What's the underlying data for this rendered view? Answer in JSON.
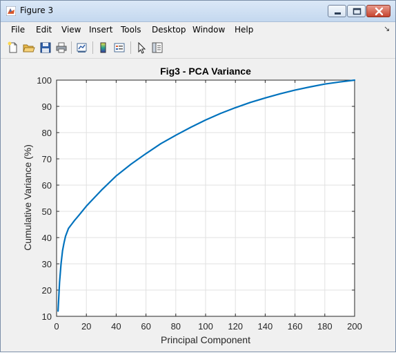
{
  "window": {
    "title": "Figure 3"
  },
  "menu": {
    "items": [
      "File",
      "Edit",
      "View",
      "Insert",
      "Tools",
      "Desktop",
      "Window",
      "Help"
    ]
  },
  "toolbar": {
    "icons": [
      "new-figure-icon",
      "open-file-icon",
      "save-icon",
      "print-icon",
      "link-plot-icon",
      "insert-colorbar-icon",
      "insert-legend-icon",
      "edit-plot-icon",
      "property-inspector-icon"
    ]
  },
  "colors": {
    "line": "#0072bd",
    "grid": "#e0e0e0",
    "axes_bg": "#ffffff",
    "figure_bg": "#f0f0f0"
  },
  "chart_data": {
    "type": "line",
    "title": "Fig3 - PCA Variance",
    "xlabel": "Principal Component",
    "ylabel": "Cumulative Variance (%)",
    "xlim": [
      0,
      200
    ],
    "ylim": [
      10,
      100
    ],
    "xticks": [
      0,
      20,
      40,
      60,
      80,
      100,
      120,
      140,
      160,
      180,
      200
    ],
    "yticks": [
      10,
      20,
      30,
      40,
      50,
      60,
      70,
      80,
      90,
      100
    ],
    "grid": true,
    "series": [
      {
        "x": [
          1,
          2,
          3,
          4,
          5,
          6,
          7,
          8,
          10,
          12,
          15,
          20,
          25,
          30,
          40,
          50,
          60,
          70,
          80,
          90,
          100,
          110,
          120,
          130,
          140,
          150,
          160,
          170,
          180,
          190,
          200
        ],
        "y": [
          12,
          23,
          30,
          35,
          38,
          40.5,
          42,
          43.5,
          45,
          46.5,
          48.5,
          52,
          55,
          58,
          63.5,
          68,
          72,
          75.8,
          79,
          82,
          84.8,
          87.3,
          89.5,
          91.5,
          93.2,
          94.8,
          96.2,
          97.4,
          98.5,
          99.3,
          100
        ]
      }
    ]
  }
}
